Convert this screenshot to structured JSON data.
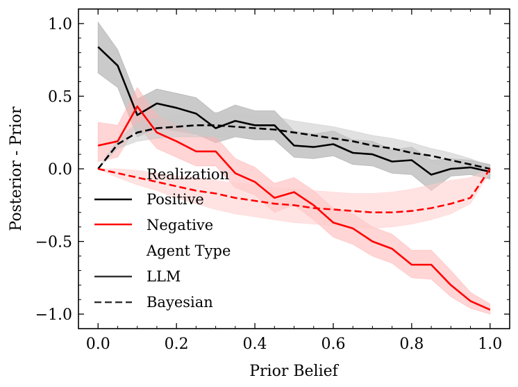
{
  "chart_data": {
    "type": "line",
    "title": "",
    "xlabel": "Prior Belief",
    "ylabel": "Posterior - Prior",
    "xlim": [
      -0.05,
      1.05
    ],
    "ylim": [
      -1.1,
      1.1
    ],
    "xticks": [
      0.0,
      0.2,
      0.4,
      0.6,
      0.8,
      1.0
    ],
    "xtick_labels": [
      "0.0",
      "0.2",
      "0.4",
      "0.6",
      "0.8",
      "1.0"
    ],
    "yticks": [
      -1.0,
      -0.5,
      0.0,
      0.5,
      1.0
    ],
    "ytick_labels": [
      "−1.0",
      "−0.5",
      "0.0",
      "0.5",
      "1.0"
    ],
    "grid": false,
    "legend": {
      "placement": "left-center",
      "sections": [
        {
          "title": "Realization",
          "items": [
            {
              "label": "Positive",
              "color": "#000000",
              "dash": "solid"
            },
            {
              "label": "Negative",
              "color": "#ff0000",
              "dash": "solid"
            }
          ]
        },
        {
          "title": "Agent Type",
          "items": [
            {
              "label": "LLM",
              "color": "#333333",
              "dash": "solid"
            },
            {
              "label": "Bayesian",
              "color": "#333333",
              "dash": "dashed"
            }
          ]
        }
      ]
    },
    "series": [
      {
        "name": "Positive — LLM",
        "realization": "Positive",
        "agent": "LLM",
        "color": "#000000",
        "dash": "solid",
        "x": [
          0.0,
          0.05,
          0.1,
          0.15,
          0.2,
          0.25,
          0.3,
          0.35,
          0.4,
          0.45,
          0.5,
          0.55,
          0.6,
          0.65,
          0.7,
          0.75,
          0.8,
          0.85,
          0.9,
          0.95,
          1.0
        ],
        "y": [
          0.84,
          0.71,
          0.37,
          0.45,
          0.42,
          0.38,
          0.28,
          0.33,
          0.3,
          0.3,
          0.16,
          0.15,
          0.17,
          0.11,
          0.1,
          0.05,
          0.06,
          -0.04,
          0.0,
          0.01,
          -0.02
        ],
        "band_low": [
          0.66,
          0.56,
          0.22,
          0.28,
          0.26,
          0.24,
          0.18,
          0.22,
          0.2,
          0.2,
          0.08,
          0.07,
          0.09,
          0.03,
          0.02,
          -0.03,
          -0.04,
          -0.15,
          -0.05,
          -0.04,
          -0.07
        ],
        "band_high": [
          1.01,
          0.82,
          0.48,
          0.55,
          0.52,
          0.49,
          0.38,
          0.44,
          0.4,
          0.4,
          0.26,
          0.24,
          0.26,
          0.2,
          0.19,
          0.13,
          0.15,
          0.06,
          0.07,
          0.06,
          0.03
        ],
        "band_color": "#9e9e9e"
      },
      {
        "name": "Negative — LLM",
        "realization": "Negative",
        "agent": "LLM",
        "color": "#ff0000",
        "dash": "solid",
        "x": [
          0.0,
          0.05,
          0.1,
          0.15,
          0.2,
          0.25,
          0.3,
          0.35,
          0.4,
          0.45,
          0.5,
          0.55,
          0.6,
          0.65,
          0.7,
          0.75,
          0.8,
          0.85,
          0.9,
          0.95,
          1.0
        ],
        "y": [
          0.16,
          0.19,
          0.43,
          0.25,
          0.19,
          0.12,
          0.12,
          -0.03,
          -0.09,
          -0.2,
          -0.16,
          -0.25,
          -0.37,
          -0.41,
          -0.5,
          -0.55,
          -0.66,
          -0.66,
          -0.8,
          -0.91,
          -0.97
        ],
        "band_low": [
          0.05,
          0.08,
          0.3,
          0.14,
          0.08,
          0.02,
          0.02,
          -0.13,
          -0.18,
          -0.3,
          -0.25,
          -0.35,
          -0.47,
          -0.52,
          -0.6,
          -0.65,
          -0.75,
          -0.76,
          -0.88,
          -0.96,
          -1.0
        ],
        "band_high": [
          0.32,
          0.3,
          0.56,
          0.37,
          0.3,
          0.23,
          0.22,
          0.07,
          0.01,
          -0.1,
          -0.06,
          -0.15,
          -0.27,
          -0.31,
          -0.4,
          -0.45,
          -0.56,
          -0.56,
          -0.7,
          -0.85,
          -0.93
        ],
        "band_color": "#ffb3b3"
      },
      {
        "name": "Positive — Bayesian",
        "realization": "Positive",
        "agent": "Bayesian",
        "color": "#000000",
        "dash": "dashed",
        "x": [
          0.0,
          0.05,
          0.1,
          0.15,
          0.2,
          0.25,
          0.3,
          0.35,
          0.4,
          0.45,
          0.5,
          0.55,
          0.6,
          0.65,
          0.7,
          0.75,
          0.8,
          0.85,
          0.9,
          0.95,
          1.0
        ],
        "y": [
          0.0,
          0.17,
          0.25,
          0.28,
          0.29,
          0.3,
          0.3,
          0.29,
          0.28,
          0.27,
          0.25,
          0.23,
          0.21,
          0.19,
          0.16,
          0.14,
          0.11,
          0.09,
          0.06,
          0.03,
          0.0
        ],
        "band_low": [
          0.0,
          0.14,
          0.19,
          0.21,
          0.22,
          0.22,
          0.22,
          0.22,
          0.21,
          0.2,
          0.18,
          0.16,
          0.14,
          0.12,
          0.1,
          0.08,
          0.06,
          0.04,
          0.02,
          0.0,
          -0.02
        ],
        "band_high": [
          0.0,
          0.2,
          0.32,
          0.35,
          0.37,
          0.38,
          0.39,
          0.38,
          0.37,
          0.36,
          0.33,
          0.31,
          0.29,
          0.26,
          0.23,
          0.21,
          0.18,
          0.14,
          0.11,
          0.07,
          0.02
        ],
        "band_color": "#c8c8c8"
      },
      {
        "name": "Negative — Bayesian",
        "realization": "Negative",
        "agent": "Bayesian",
        "color": "#ff0000",
        "dash": "dashed",
        "x": [
          0.0,
          0.05,
          0.1,
          0.15,
          0.2,
          0.25,
          0.3,
          0.35,
          0.4,
          0.45,
          0.5,
          0.55,
          0.6,
          0.65,
          0.7,
          0.75,
          0.8,
          0.85,
          0.9,
          0.95,
          1.0
        ],
        "y": [
          0.0,
          -0.03,
          -0.06,
          -0.09,
          -0.12,
          -0.15,
          -0.17,
          -0.2,
          -0.22,
          -0.24,
          -0.25,
          -0.27,
          -0.28,
          -0.29,
          -0.3,
          -0.3,
          -0.29,
          -0.27,
          -0.24,
          -0.2,
          0.0
        ],
        "band_low": [
          0.0,
          -0.06,
          -0.11,
          -0.15,
          -0.2,
          -0.24,
          -0.28,
          -0.31,
          -0.33,
          -0.35,
          -0.37,
          -0.38,
          -0.39,
          -0.4,
          -0.41,
          -0.4,
          -0.38,
          -0.35,
          -0.31,
          -0.24,
          -0.02
        ],
        "band_high": [
          0.0,
          0.0,
          -0.01,
          -0.03,
          -0.05,
          -0.06,
          -0.08,
          -0.1,
          -0.11,
          -0.13,
          -0.14,
          -0.15,
          -0.16,
          -0.17,
          -0.17,
          -0.16,
          -0.14,
          -0.11,
          -0.08,
          -0.06,
          0.0
        ],
        "band_color": "#ffcccc"
      }
    ]
  }
}
